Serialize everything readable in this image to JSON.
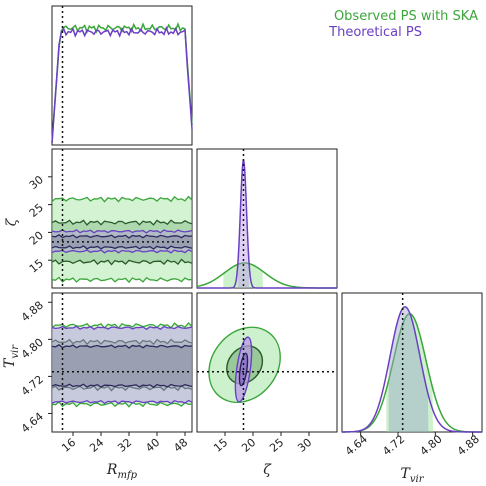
{
  "chart_data": {
    "type": "corner",
    "parameters": [
      {
        "key": "rmfp",
        "label": "R",
        "sub": "mfp",
        "range": [
          10,
          50
        ],
        "ticks": [
          "16",
          "24",
          "32",
          "40",
          "48"
        ],
        "truth": 13.0
      },
      {
        "key": "zeta",
        "label": "ζ",
        "sub": "",
        "range": [
          10,
          35
        ],
        "ticks": [
          "15",
          "20",
          "25",
          "30"
        ],
        "truth": 18.3
      },
      {
        "key": "tvir",
        "label": "T",
        "sub": "vir",
        "range": [
          4.6,
          4.9
        ],
        "ticks": [
          "4.64",
          "4.72",
          "4.80",
          "4.88"
        ],
        "truth": 4.73
      }
    ],
    "legend": [
      {
        "name": "Observed PS with SKA",
        "color": "#3aa63a"
      },
      {
        "name": "Theoretical PS",
        "color": "#6a3fc4"
      }
    ],
    "legend_position": "top-right",
    "series": [
      {
        "name": "Observed PS with SKA",
        "color": "#3aa63a",
        "fill": "#90e090",
        "means": {
          "rmfp": 30,
          "zeta": 18.5,
          "tvir": 4.745
        },
        "sigmas": {
          "zeta": 3.6,
          "tvir": 0.035
        },
        "band_1sigma": {
          "zeta": [
            14.7,
            21.8
          ],
          "tvir": [
            4.695,
            4.795
          ]
        },
        "band_2sigma": {
          "zeta": [
            11.5,
            26.0
          ],
          "tvir": [
            4.66,
            4.83
          ]
        }
      },
      {
        "name": "Theoretical PS",
        "color": "#6a3fc4",
        "fill": "#b79ae6",
        "means": {
          "rmfp": 30,
          "zeta": 18.3,
          "tvir": 4.735
        },
        "sigmas": {
          "zeta": 0.55,
          "tvir": 0.032
        },
        "band_1sigma": {
          "zeta": [
            17.3,
            19.3
          ],
          "tvir": [
            4.7,
            4.785
          ]
        },
        "band_2sigma": {
          "zeta": [
            16.6,
            20.2
          ],
          "tvir": [
            4.665,
            4.825
          ]
        }
      }
    ]
  }
}
